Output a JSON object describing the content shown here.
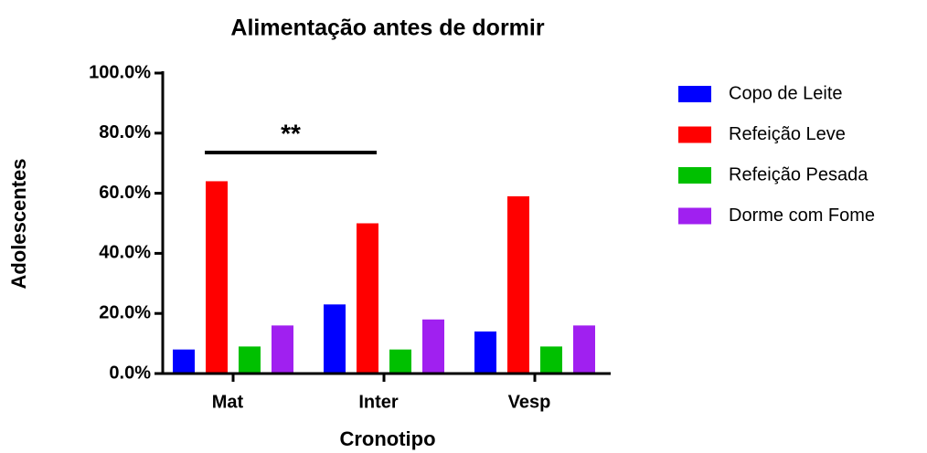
{
  "chart_data": {
    "type": "bar",
    "title": "Alimentação antes de dormir",
    "x_label": "Cronotipo",
    "y_label": "Adolescentes",
    "categories": [
      "Mat",
      "Inter",
      "Vesp"
    ],
    "series": [
      {
        "name": "Copo de Leite",
        "color": "#0000ff",
        "values": [
          8,
          23,
          14
        ]
      },
      {
        "name": "Refeição Leve",
        "color": "#ff0000",
        "values": [
          64,
          50,
          59
        ]
      },
      {
        "name": "Refeição Pesada",
        "color": "#00c000",
        "values": [
          9,
          8,
          9
        ]
      },
      {
        "name": "Dorme com Fome",
        "color": "#a020f0",
        "values": [
          16,
          18,
          16
        ]
      }
    ],
    "ylim": [
      0,
      100
    ],
    "yticks": [
      {
        "value": 0,
        "label": "0.0%"
      },
      {
        "value": 20,
        "label": "20.0%"
      },
      {
        "value": 40,
        "label": "40.0%"
      },
      {
        "value": 60,
        "label": "60.0%"
      },
      {
        "value": 80,
        "label": "80.0%"
      },
      {
        "value": 100,
        "label": "100.0%"
      }
    ],
    "annotation": "**",
    "legend": "right"
  }
}
